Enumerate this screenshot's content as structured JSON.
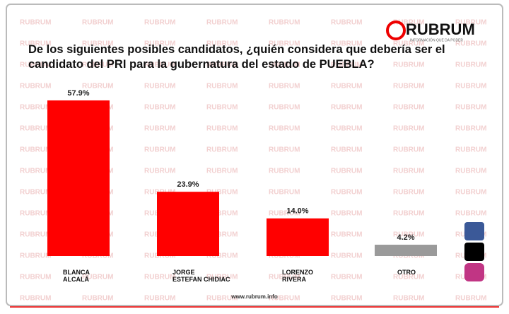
{
  "chart_data": {
    "type": "bar",
    "title": "De los siguientes posibles candidatos, ¿quién considera que debería ser el candidato del PRI para la gubernatura del estado de PUEBLA?",
    "categories": [
      "BLANCA\nALCALÁ",
      "JORGE\nESTEFAN CHIDIAC",
      "LORENZO\nRIVERA",
      "OTRO"
    ],
    "values": [
      57.9,
      23.9,
      14.0,
      4.2
    ],
    "value_labels": [
      "57.9%",
      "23.9%",
      "14.0%",
      "4.2%"
    ],
    "colors": [
      "#ff0000",
      "#ff0000",
      "#ff0000",
      "#9a9a9a"
    ],
    "ylim": [
      0,
      60
    ],
    "logo": "RUBRUM",
    "tagline": "INFORMACIÓN QUE DA PODER",
    "watermark": "RUBRUM",
    "footer": "www.rubrum.info"
  }
}
